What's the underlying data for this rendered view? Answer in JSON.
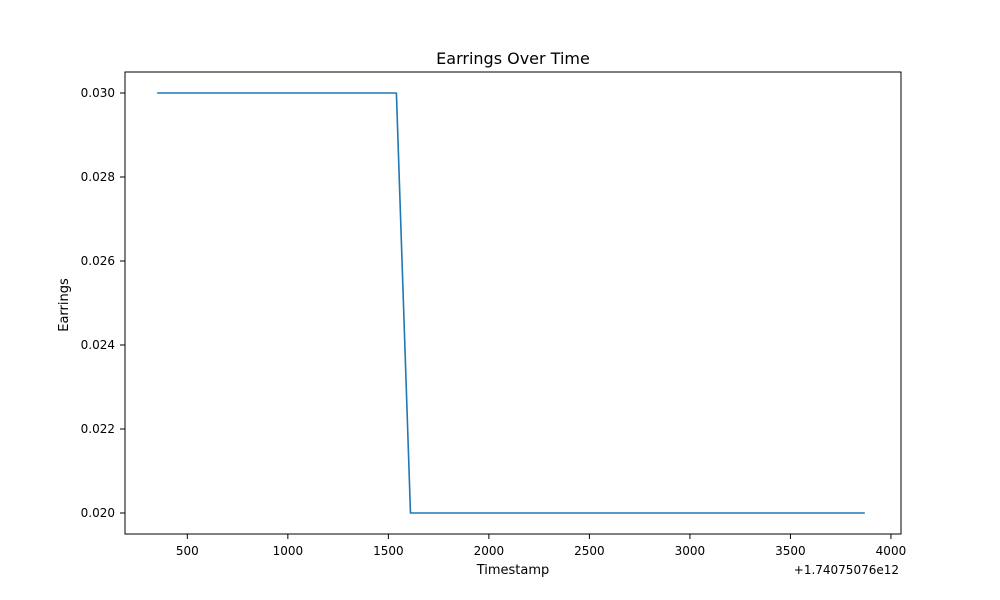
{
  "chart_data": {
    "type": "line",
    "title": "Earrings Over Time",
    "xlabel": "Timestamp",
    "ylabel": "Earrings",
    "x_offset_label": "+1.74075076e12",
    "xlim": [
      190,
      4050
    ],
    "ylim": [
      0.0195,
      0.0305
    ],
    "x_ticks": [
      500,
      1000,
      1500,
      2000,
      2500,
      3000,
      3500,
      4000
    ],
    "x_tick_labels": [
      "500",
      "1000",
      "1500",
      "2000",
      "2500",
      "3000",
      "3500",
      "4000"
    ],
    "y_ticks": [
      0.02,
      0.022,
      0.024,
      0.026,
      0.028,
      0.03
    ],
    "y_tick_labels": [
      "0.020",
      "0.022",
      "0.024",
      "0.026",
      "0.028",
      "0.030"
    ],
    "grid": false,
    "series": [
      {
        "color": "#1f77b4",
        "x": [
          350,
          1540,
          1610,
          3870
        ],
        "y": [
          0.03,
          0.03,
          0.02,
          0.02
        ]
      }
    ]
  }
}
